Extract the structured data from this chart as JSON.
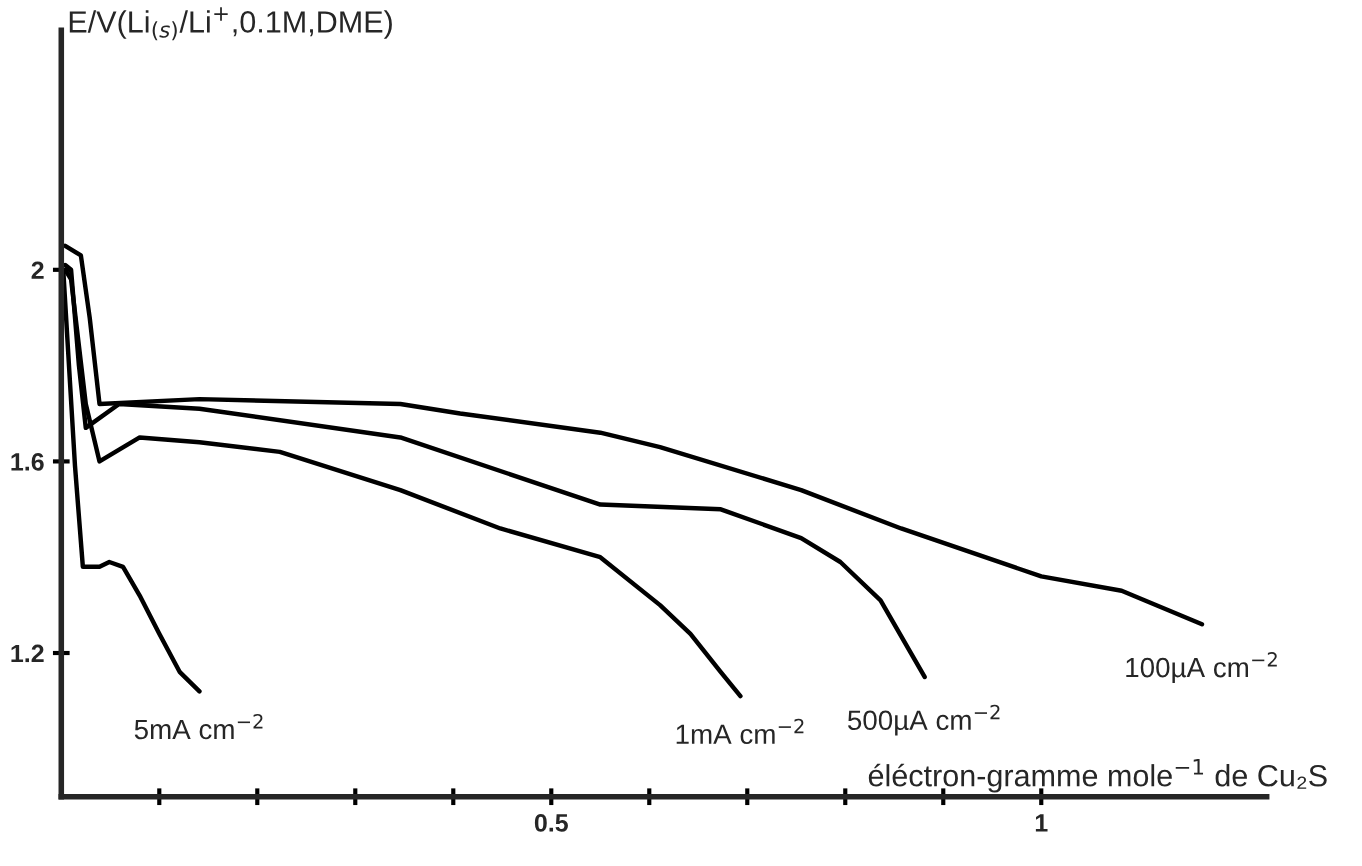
{
  "chart_data": {
    "type": "line",
    "xlabel": "éléctron-gramme mole$^{−1}$ de Cu₂S",
    "ylabel": "E/V(Li$_{(s)}$/Li$^{+}$,0.1M,DME)",
    "xlim": [
      0,
      1.23
    ],
    "ylim": [
      0.9,
      2.5
    ],
    "xticks": [
      {
        "value": 0.1,
        "label": null
      },
      {
        "value": 0.2,
        "label": null
      },
      {
        "value": 0.3,
        "label": null
      },
      {
        "value": 0.4,
        "label": null
      },
      0.5,
      {
        "value": 0.6,
        "label": null
      },
      {
        "value": 0.7,
        "label": null
      },
      {
        "value": 0.8,
        "label": null
      },
      {
        "value": 0.9,
        "label": null
      },
      1
    ],
    "yticks": [
      1.2,
      1.6,
      2
    ],
    "grid": false,
    "legend": false,
    "marker": "none",
    "line_style": "solid",
    "series": [
      {
        "name": "100µA cm$^{−2}$",
        "color": "#000000",
        "x": [
          0.004,
          0.02,
          0.029,
          0.039,
          0.141,
          0.346,
          0.407,
          0.55,
          0.611,
          0.755,
          0.857,
          1.0,
          1.082,
          1.164
        ],
        "values": [
          2.05,
          2.03,
          1.9,
          1.72,
          1.73,
          1.72,
          1.7,
          1.66,
          1.63,
          1.54,
          1.46,
          1.36,
          1.33,
          1.26
        ]
      },
      {
        "name": "500µA cm$^{−2}$",
        "color": "#000000",
        "x": [
          0.004,
          0.01,
          0.018,
          0.025,
          0.059,
          0.141,
          0.346,
          0.55,
          0.673,
          0.755,
          0.795,
          0.836,
          0.867,
          0.881
        ],
        "values": [
          2.01,
          2.0,
          1.8,
          1.67,
          1.72,
          1.71,
          1.65,
          1.51,
          1.5,
          1.44,
          1.39,
          1.31,
          1.2,
          1.15
        ]
      },
      {
        "name": "1mA cm$^{−2}$",
        "color": "#000000",
        "x": [
          0.004,
          0.01,
          0.025,
          0.039,
          0.08,
          0.141,
          0.223,
          0.346,
          0.448,
          0.55,
          0.611,
          0.642,
          0.673,
          0.693
        ],
        "values": [
          2.0,
          1.98,
          1.72,
          1.6,
          1.65,
          1.64,
          1.62,
          1.54,
          1.46,
          1.4,
          1.3,
          1.24,
          1.16,
          1.11
        ]
      },
      {
        "name": "5mA cm$^{−2}$",
        "color": "#000000",
        "x": [
          0.002,
          0.014,
          0.022,
          0.039,
          0.049,
          0.063,
          0.08,
          0.1,
          0.121,
          0.141
        ],
        "values": [
          2.0,
          1.59,
          1.38,
          1.38,
          1.39,
          1.38,
          1.32,
          1.24,
          1.16,
          1.12
        ]
      }
    ]
  }
}
